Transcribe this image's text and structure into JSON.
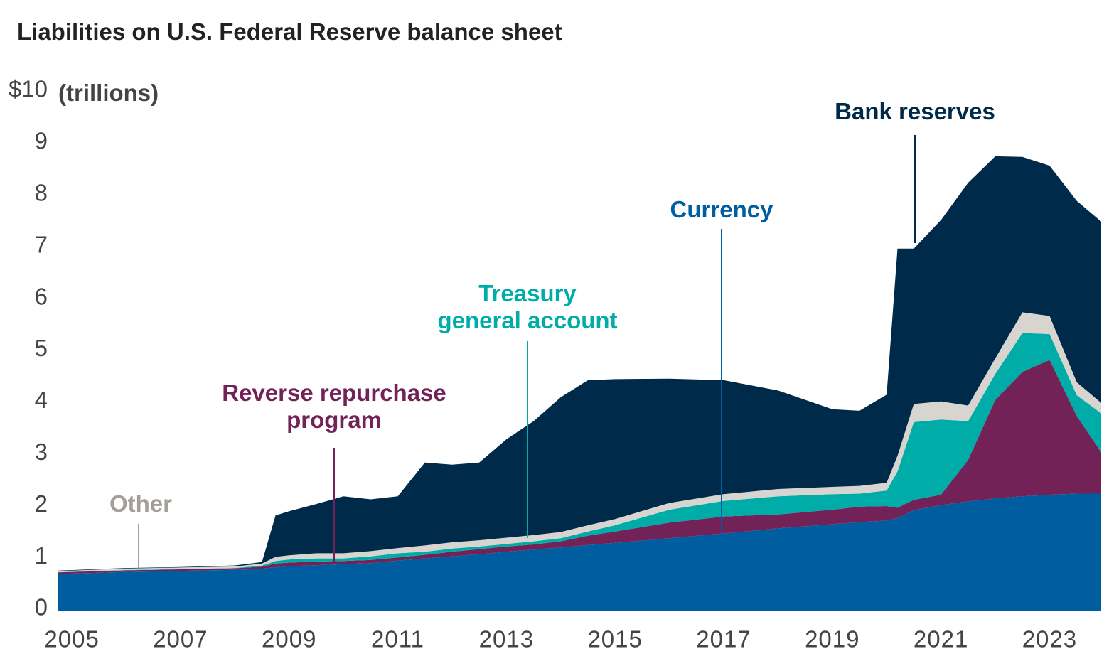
{
  "chart_data": {
    "type": "stacked_area",
    "title": "Liabilities on U.S. Federal Reserve balance sheet",
    "ylabel": "(trillions)",
    "x": [
      2004.75,
      2006,
      2007,
      2008,
      2008.5,
      2008.75,
      2009,
      2009.5,
      2010,
      2010.5,
      2011,
      2011.5,
      2012,
      2012.5,
      2013,
      2013.5,
      2014,
      2014.5,
      2015,
      2016,
      2017,
      2018,
      2019,
      2019.5,
      2020,
      2020.2,
      2020.5,
      2021,
      2021.5,
      2022,
      2022.5,
      2023,
      2023.5,
      2023.95
    ],
    "series": [
      {
        "name": "Currency",
        "color": "#005ea0",
        "values": [
          0.72,
          0.76,
          0.78,
          0.8,
          0.82,
          0.85,
          0.87,
          0.89,
          0.91,
          0.93,
          0.98,
          1.02,
          1.06,
          1.1,
          1.15,
          1.19,
          1.23,
          1.28,
          1.32,
          1.41,
          1.5,
          1.6,
          1.68,
          1.72,
          1.75,
          1.8,
          1.95,
          2.05,
          2.12,
          2.18,
          2.22,
          2.25,
          2.27,
          2.27
        ]
      },
      {
        "name": "Reverse repurchase\nprogram",
        "color": "#722257",
        "values": [
          0.03,
          0.03,
          0.03,
          0.03,
          0.04,
          0.07,
          0.07,
          0.07,
          0.06,
          0.06,
          0.06,
          0.07,
          0.09,
          0.1,
          0.1,
          0.1,
          0.12,
          0.18,
          0.22,
          0.3,
          0.33,
          0.27,
          0.28,
          0.3,
          0.28,
          0.2,
          0.2,
          0.2,
          0.8,
          1.9,
          2.4,
          2.6,
          1.5,
          0.8
        ]
      },
      {
        "name": "Treasury\ngeneral account",
        "color": "#00aca7",
        "values": [
          0.005,
          0.005,
          0.005,
          0.005,
          0.02,
          0.05,
          0.06,
          0.06,
          0.05,
          0.07,
          0.08,
          0.06,
          0.06,
          0.05,
          0.05,
          0.06,
          0.06,
          0.08,
          0.12,
          0.25,
          0.3,
          0.35,
          0.3,
          0.25,
          0.3,
          0.7,
          1.5,
          1.45,
          0.75,
          0.5,
          0.75,
          0.5,
          0.4,
          0.75
        ]
      },
      {
        "name": "Other",
        "color": "#d8d4cf",
        "values": [
          0.02,
          0.03,
          0.03,
          0.03,
          0.04,
          0.08,
          0.08,
          0.1,
          0.1,
          0.1,
          0.1,
          0.12,
          0.12,
          0.12,
          0.12,
          0.12,
          0.12,
          0.12,
          0.12,
          0.13,
          0.13,
          0.14,
          0.14,
          0.15,
          0.15,
          0.3,
          0.35,
          0.35,
          0.3,
          0.3,
          0.4,
          0.35,
          0.25,
          0.2
        ]
      },
      {
        "name": "Bank reserves",
        "color": "#002a4a",
        "values": [
          0.01,
          0.01,
          0.01,
          0.02,
          0.03,
          0.8,
          0.85,
          0.95,
          1.1,
          1.0,
          1.0,
          1.6,
          1.5,
          1.5,
          1.9,
          2.2,
          2.6,
          2.8,
          2.7,
          2.4,
          2.2,
          1.9,
          1.5,
          1.45,
          1.7,
          4.0,
          3.0,
          3.5,
          4.3,
          3.9,
          3.0,
          2.9,
          3.5,
          3.5
        ]
      }
    ],
    "label_colors": [
      "#005ea0",
      "#722257",
      "#00aca7",
      "#a39e99",
      "#002a4a"
    ],
    "xlim": [
      2004.75,
      2023.95
    ],
    "xticks": [
      2005,
      2007,
      2009,
      2011,
      2013,
      2015,
      2017,
      2019,
      2021,
      2023
    ],
    "ylim": [
      0,
      10
    ],
    "yticks": [
      0,
      1,
      2,
      3,
      4,
      5,
      6,
      7,
      8,
      9,
      {
        "value": 10,
        "label": "$10"
      }
    ],
    "grid": false
  }
}
